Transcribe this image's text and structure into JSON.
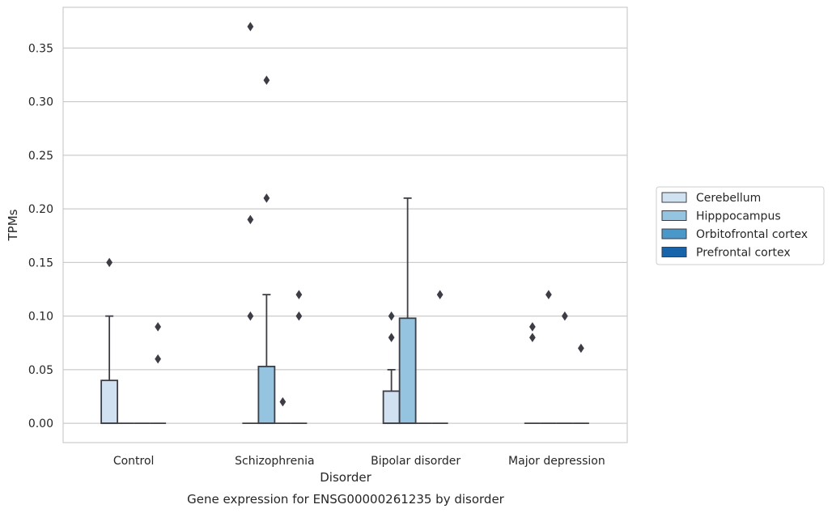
{
  "chart_data": {
    "type": "box",
    "title": "",
    "caption": "Gene expression for ENSG00000261235 by disorder",
    "xlabel": "Disorder",
    "ylabel": "TPMs",
    "ylim": [
      -0.018,
      0.388
    ],
    "yticks": [
      0.0,
      0.05,
      0.1,
      0.15,
      0.2,
      0.25,
      0.3,
      0.35
    ],
    "ytick_labels": [
      "0.00",
      "0.05",
      "0.10",
      "0.15",
      "0.20",
      "0.25",
      "0.30",
      "0.35"
    ],
    "grid": "horizontal",
    "legend_position": "right-center",
    "categories": [
      "Control",
      "Schizophrenia",
      "Bipolar disorder",
      "Major depression"
    ],
    "series": [
      {
        "name": "Cerebellum",
        "color": "#d0e1f2",
        "boxes": [
          {
            "q1": 0.0,
            "median": 0.0,
            "q3": 0.04,
            "whisker_low": 0.0,
            "whisker_high": 0.1,
            "outliers": [
              0.15
            ]
          },
          {
            "q1": 0.0,
            "median": 0.0,
            "q3": 0.0,
            "whisker_low": 0.0,
            "whisker_high": 0.0,
            "outliers": [
              0.37,
              0.19,
              0.1
            ]
          },
          {
            "q1": 0.0,
            "median": 0.0,
            "q3": 0.03,
            "whisker_low": 0.0,
            "whisker_high": 0.05,
            "outliers": [
              0.1,
              0.08
            ]
          },
          {
            "q1": 0.0,
            "median": 0.0,
            "q3": 0.0,
            "whisker_low": 0.0,
            "whisker_high": 0.0,
            "outliers": [
              0.09,
              0.08
            ]
          }
        ]
      },
      {
        "name": "Hipppocampus",
        "color": "#94c4df",
        "boxes": [
          {
            "q1": 0.0,
            "median": 0.0,
            "q3": 0.0,
            "whisker_low": 0.0,
            "whisker_high": 0.0,
            "outliers": []
          },
          {
            "q1": 0.0,
            "median": 0.0,
            "q3": 0.053,
            "whisker_low": 0.0,
            "whisker_high": 0.12,
            "outliers": [
              0.32,
              0.21
            ]
          },
          {
            "q1": 0.0,
            "median": 0.0,
            "q3": 0.098,
            "whisker_low": 0.0,
            "whisker_high": 0.21,
            "outliers": []
          },
          {
            "q1": 0.0,
            "median": 0.0,
            "q3": 0.0,
            "whisker_low": 0.0,
            "whisker_high": 0.0,
            "outliers": [
              0.12
            ]
          }
        ]
      },
      {
        "name": "Orbitofrontal cortex",
        "color": "#4a98c9",
        "boxes": [
          {
            "q1": 0.0,
            "median": 0.0,
            "q3": 0.0,
            "whisker_low": 0.0,
            "whisker_high": 0.0,
            "outliers": []
          },
          {
            "q1": 0.0,
            "median": 0.0,
            "q3": 0.0,
            "whisker_low": 0.0,
            "whisker_high": 0.0,
            "outliers": [
              0.02
            ]
          },
          {
            "q1": 0.0,
            "median": 0.0,
            "q3": 0.0,
            "whisker_low": 0.0,
            "whisker_high": 0.0,
            "outliers": []
          },
          {
            "q1": 0.0,
            "median": 0.0,
            "q3": 0.0,
            "whisker_low": 0.0,
            "whisker_high": 0.0,
            "outliers": [
              0.1
            ]
          }
        ]
      },
      {
        "name": "Prefrontal cortex",
        "color": "#1764ab",
        "boxes": [
          {
            "q1": 0.0,
            "median": 0.0,
            "q3": 0.0,
            "whisker_low": 0.0,
            "whisker_high": 0.0,
            "outliers": [
              0.09,
              0.06
            ]
          },
          {
            "q1": 0.0,
            "median": 0.0,
            "q3": 0.0,
            "whisker_low": 0.0,
            "whisker_high": 0.0,
            "outliers": [
              0.12,
              0.1
            ]
          },
          {
            "q1": 0.0,
            "median": 0.0,
            "q3": 0.0,
            "whisker_low": 0.0,
            "whisker_high": 0.0,
            "outliers": [
              0.12
            ]
          },
          {
            "q1": 0.0,
            "median": 0.0,
            "q3": 0.0,
            "whisker_low": 0.0,
            "whisker_high": 0.0,
            "outliers": [
              0.07
            ]
          }
        ]
      }
    ],
    "line_color": "#3d3d46",
    "grid_color": "#cccccc",
    "frame_color": "#cccccc"
  }
}
